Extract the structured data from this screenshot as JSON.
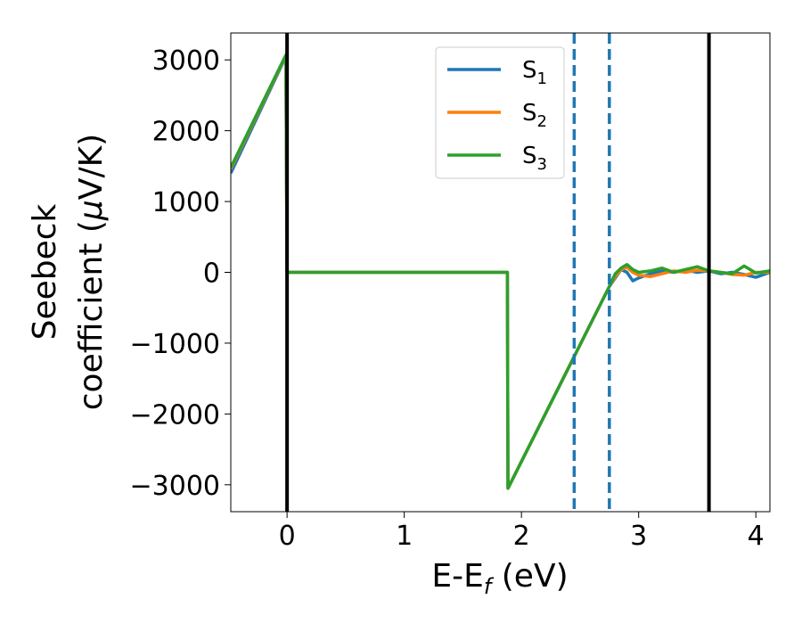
{
  "chart_data": {
    "type": "line",
    "xlabel": "E-E_f (eV)",
    "xlabel_main": "E-E",
    "xlabel_sub": "f",
    "xlabel_unit": " (eV)",
    "ylabel_line1": "Seebeck",
    "ylabel_line2_prefix": "coefficient  (",
    "ylabel_mu": "μ",
    "ylabel_line2_suffix": "V/K)",
    "xlim": [
      -0.48,
      4.12
    ],
    "ylim": [
      -3380,
      3380
    ],
    "xticks": [
      0,
      1,
      2,
      3,
      4
    ],
    "xtick_labels": [
      "0",
      "1",
      "2",
      "3",
      "4"
    ],
    "yticks": [
      -3000,
      -2000,
      -1000,
      0,
      1000,
      2000,
      3000
    ],
    "ytick_labels": [
      "−3000",
      "−2000",
      "−1000",
      "0",
      "1000",
      "2000",
      "3000"
    ],
    "legend_position": "top-center",
    "grid": false,
    "vertical_lines": [
      {
        "x": 0,
        "style": "solid",
        "color": "#000000"
      },
      {
        "x": 3.6,
        "style": "solid",
        "color": "#000000"
      },
      {
        "x": 2.45,
        "style": "dashed",
        "color": "#1f77b4"
      },
      {
        "x": 2.75,
        "style": "dashed",
        "color": "#1f77b4"
      }
    ],
    "series": [
      {
        "name": "S",
        "sub": "1",
        "color": "#1f77b4",
        "x": [
          -0.48,
          -0.01,
          -0.005,
          0.0,
          1.88,
          1.885,
          2.75,
          2.8,
          2.85,
          2.9,
          2.95,
          3.0,
          3.1,
          3.2,
          3.3,
          3.4,
          3.5,
          3.6,
          3.7,
          3.8,
          3.9,
          4.0,
          4.12
        ],
        "y": [
          1400,
          3050,
          1500,
          0,
          0,
          -3050,
          -200,
          -80,
          40,
          0,
          -120,
          -80,
          -20,
          20,
          0,
          30,
          0,
          20,
          -20,
          0,
          -30,
          -70,
          0
        ]
      },
      {
        "name": "S",
        "sub": "2",
        "color": "#ff7f0e",
        "x": [
          -0.48,
          -0.01,
          -0.005,
          0.0,
          1.88,
          1.885,
          2.75,
          2.8,
          2.85,
          2.9,
          2.95,
          3.0,
          3.1,
          3.2,
          3.3,
          3.4,
          3.5,
          3.6,
          3.7,
          3.8,
          3.9,
          4.0,
          4.12
        ],
        "y": [
          1460,
          3060,
          1500,
          0,
          0,
          -3050,
          -200,
          -60,
          40,
          70,
          0,
          -40,
          -60,
          -20,
          20,
          0,
          30,
          20,
          0,
          -30,
          -40,
          0,
          0
        ]
      },
      {
        "name": "S",
        "sub": "3",
        "color": "#2ca02c",
        "x": [
          -0.48,
          -0.01,
          -0.005,
          0.0,
          1.88,
          1.885,
          2.75,
          2.8,
          2.85,
          2.9,
          2.95,
          3.0,
          3.1,
          3.2,
          3.3,
          3.4,
          3.5,
          3.6,
          3.7,
          3.8,
          3.9,
          4.0,
          4.12
        ],
        "y": [
          1480,
          3070,
          1500,
          0,
          0,
          -3050,
          -200,
          -20,
          60,
          110,
          40,
          0,
          20,
          60,
          0,
          40,
          80,
          20,
          0,
          -20,
          90,
          -10,
          20
        ]
      }
    ]
  }
}
